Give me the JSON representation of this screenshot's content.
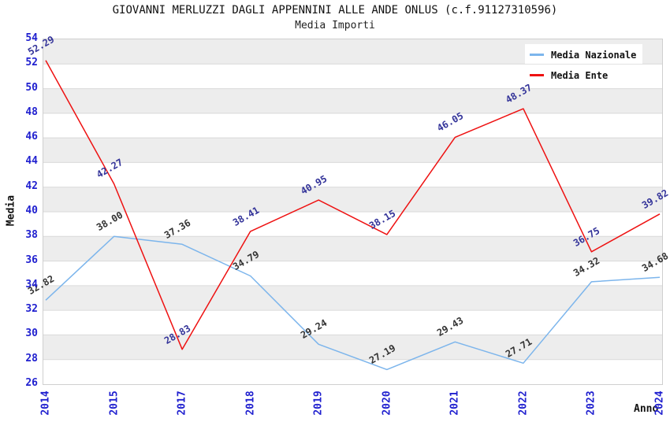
{
  "header": {
    "title": "GIOVANNI MERLUZZI DAGLI APPENNINI ALLE ANDE ONLUS (c.f.91127310596)",
    "subtitle": "Media Importi"
  },
  "chart_data": {
    "type": "line",
    "title": "GIOVANNI MERLUZZI DAGLI APPENNINI ALLE ANDE ONLUS (c.f.91127310596)",
    "subtitle": "Media Importi",
    "xlabel": "Anno",
    "ylabel": "Media",
    "ylim": [
      26,
      54
    ],
    "yticks": [
      54,
      52,
      50,
      48,
      46,
      44,
      42,
      40,
      38,
      36,
      34,
      32,
      30,
      28,
      26
    ],
    "categories": [
      "2014",
      "2015",
      "2017",
      "2018",
      "2019",
      "2020",
      "2021",
      "2022",
      "2023",
      "2024"
    ],
    "series": [
      {
        "name": "Media Nazionale",
        "color": "#7cb5ec",
        "label_color": "#333333",
        "values": [
          32.82,
          38.0,
          37.36,
          34.79,
          29.24,
          27.19,
          29.43,
          27.71,
          34.32,
          34.68
        ]
      },
      {
        "name": "Media Ente",
        "color": "#ee1111",
        "label_color": "#333399",
        "values": [
          52.29,
          42.27,
          28.83,
          38.41,
          40.95,
          38.15,
          46.05,
          48.37,
          36.75,
          39.82
        ]
      }
    ],
    "legend_position": "top-right",
    "grid": "horizontal-bands",
    "band_colors": [
      "#ededed",
      "#ffffff"
    ],
    "grid_line_color": "#d9d9d9",
    "tick_label_color": "#2020cf"
  }
}
